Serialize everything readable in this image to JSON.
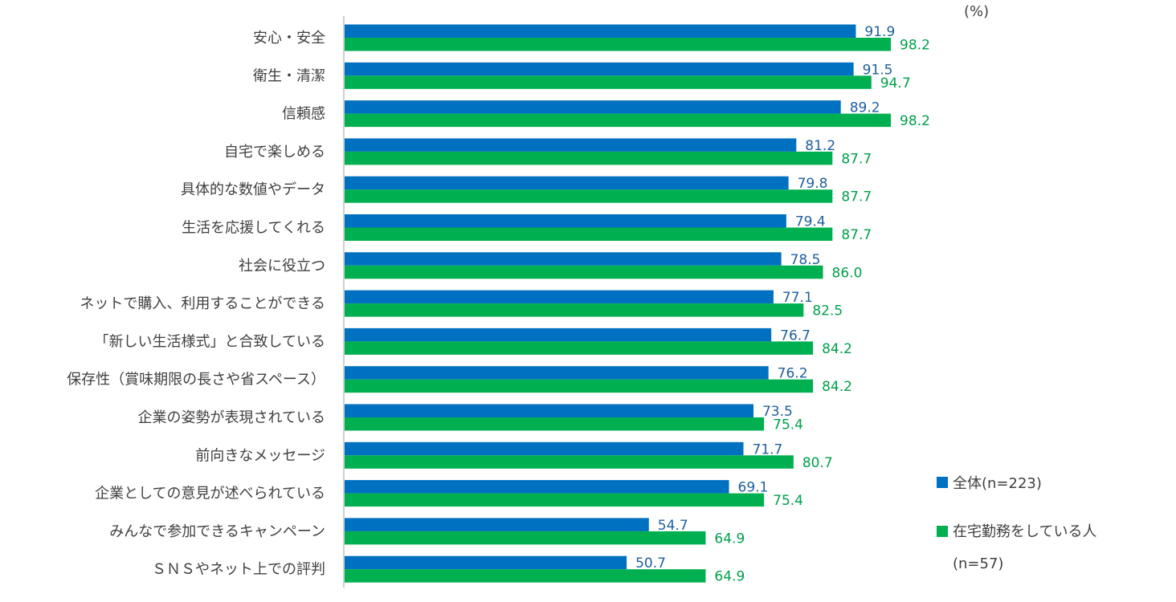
{
  "chart_data": {
    "type": "bar",
    "orientation": "horizontal",
    "unit_label": "(%)",
    "categories": [
      "安心・安全",
      "衛生・清潔",
      "信頼感",
      "自宅で楽しめる",
      "具体的な数値やデータ",
      "生活を応援してくれる",
      "社会に役立つ",
      "ネットで購入、利用することができる",
      "「新しい生活様式」と合致している",
      "保存性（賞味期限の長さや省スペース）",
      "企業の姿勢が表現されている",
      "前向きなメッセージ",
      "企業としての意見が述べられている",
      "みんなで参加できるキャンペーン",
      "ＳＮＳやネット上での評判"
    ],
    "series": [
      {
        "name": "全体(n=223)",
        "color": "#0070C0",
        "label_color": "#1F5FA0",
        "values": [
          91.9,
          91.5,
          89.2,
          81.2,
          79.8,
          79.4,
          78.5,
          77.1,
          76.7,
          76.2,
          73.5,
          71.7,
          69.1,
          54.7,
          50.7
        ]
      },
      {
        "name": "在宅勤務をしている人",
        "name_line2": "(n=57)",
        "color": "#00B050",
        "label_color": "#00A04A",
        "values": [
          98.2,
          94.7,
          98.2,
          87.7,
          87.7,
          87.7,
          86.0,
          82.5,
          84.2,
          84.2,
          75.4,
          80.7,
          75.4,
          64.9,
          64.9
        ]
      }
    ],
    "xlim": [
      0,
      100
    ],
    "grid": false,
    "legend_position": "bottom-right"
  }
}
